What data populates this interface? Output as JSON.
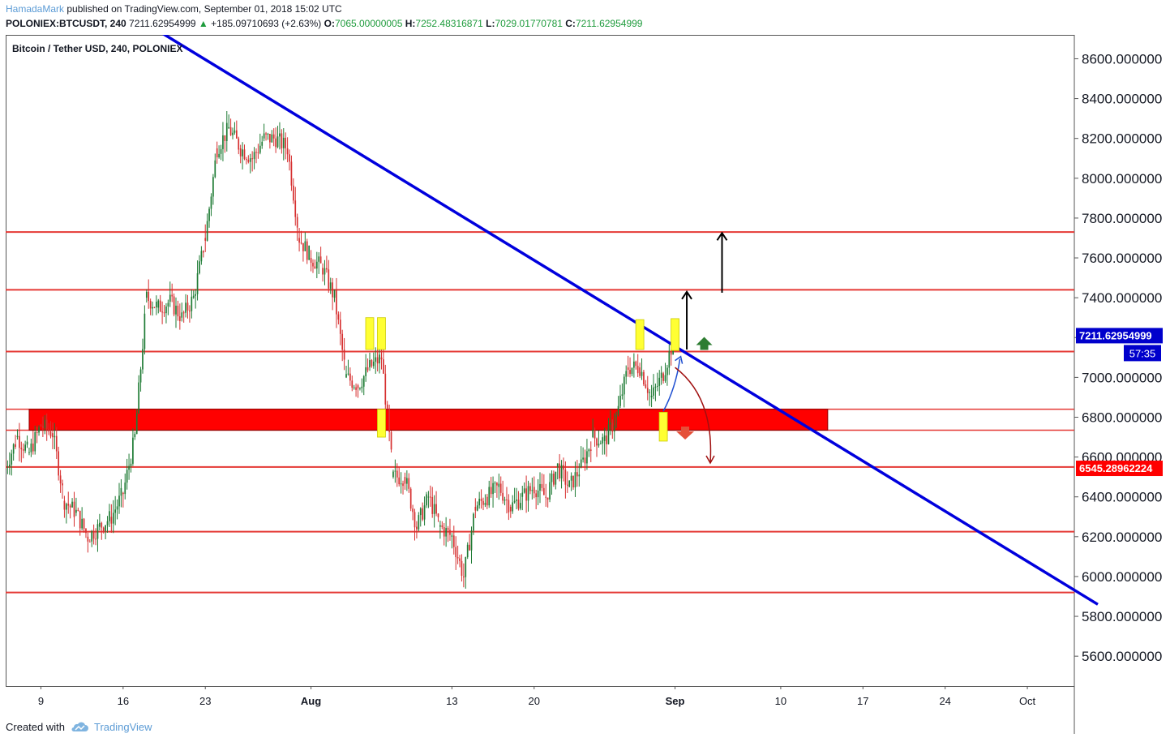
{
  "header": {
    "user": "HamadaMark",
    "published_text": " published on TradingView.com, September 01, 2018 15:02 UTC",
    "symbol": "POLONIEX:BTCUSDT, 240",
    "last": "7211.62954999",
    "arrow": "▲",
    "change": "+185.09710693 (+2.63%)",
    "o_label": "O:",
    "o_value": "7065.00000005",
    "h_label": "H:",
    "h_value": "7252.48316871",
    "l_label": "L:",
    "l_value": "7029.01770781",
    "c_label": "C:",
    "c_value": "7211.62954999"
  },
  "footer": {
    "created_with": "Created with",
    "brand": "TradingView",
    "logo_icon": "tradingview-cloud-icon"
  },
  "colors": {
    "up": "#1e7b34",
    "down": "#d62f2f",
    "trendline": "#0000dd",
    "level": "#e53935",
    "zone": "#ff0000",
    "highlight": "#ffff33",
    "price_tag": "#0000cc",
    "support_tag": "#ff0000"
  },
  "chart_data": {
    "type": "candlestick",
    "title": "Bitcoin / Tether USD, 240, POLONIEX",
    "ylim": [
      5450,
      8720
    ],
    "y_ticks": [
      5600,
      5800,
      6000,
      6200,
      6400,
      6600,
      6800,
      7000,
      7200,
      7400,
      7600,
      7800,
      8000,
      8200,
      8400,
      8600
    ],
    "y_tick_decimals": 6,
    "x_range": [
      "2018-07-06",
      "2018-10-05"
    ],
    "x_ticks": [
      {
        "date": "2018-07-09",
        "label": "9",
        "bold": false
      },
      {
        "date": "2018-07-16",
        "label": "16",
        "bold": false
      },
      {
        "date": "2018-07-23",
        "label": "23",
        "bold": false
      },
      {
        "date": "2018-08-01",
        "label": "Aug",
        "bold": true
      },
      {
        "date": "2018-08-13",
        "label": "13",
        "bold": false
      },
      {
        "date": "2018-08-20",
        "label": "20",
        "bold": false
      },
      {
        "date": "2018-09-01",
        "label": "Sep",
        "bold": true
      },
      {
        "date": "2018-09-10",
        "label": "10",
        "bold": false
      },
      {
        "date": "2018-09-17",
        "label": "17",
        "bold": false
      },
      {
        "date": "2018-09-24",
        "label": "24",
        "bold": false
      },
      {
        "date": "2018-10-01",
        "label": "Oct",
        "bold": false
      }
    ],
    "price_path": [
      [
        "2018-07-06",
        6550
      ],
      [
        "2018-07-07",
        6700
      ],
      [
        "2018-07-08",
        6620
      ],
      [
        "2018-07-09",
        6760
      ],
      [
        "2018-07-10",
        6720
      ],
      [
        "2018-07-11",
        6380
      ],
      [
        "2018-07-12",
        6320
      ],
      [
        "2018-07-13",
        6200
      ],
      [
        "2018-07-14",
        6250
      ],
      [
        "2018-07-15",
        6300
      ],
      [
        "2018-07-16",
        6420
      ],
      [
        "2018-07-17",
        6700
      ],
      [
        "2018-07-18",
        7400
      ],
      [
        "2018-07-19",
        7350
      ],
      [
        "2018-07-20",
        7380
      ],
      [
        "2018-07-21",
        7300
      ],
      [
        "2018-07-22",
        7400
      ],
      [
        "2018-07-23",
        7700
      ],
      [
        "2018-07-24",
        8150
      ],
      [
        "2018-07-25",
        8250
      ],
      [
        "2018-07-26",
        8150
      ],
      [
        "2018-07-27",
        8100
      ],
      [
        "2018-07-28",
        8200
      ],
      [
        "2018-07-29",
        8200
      ],
      [
        "2018-07-30",
        8150
      ],
      [
        "2018-07-31",
        7700
      ],
      [
        "2018-08-01",
        7600
      ],
      [
        "2018-08-02",
        7550
      ],
      [
        "2018-08-03",
        7400
      ],
      [
        "2018-08-04",
        7000
      ],
      [
        "2018-08-05",
        6960
      ],
      [
        "2018-08-06",
        7050
      ],
      [
        "2018-08-07",
        7100
      ],
      [
        "2018-08-08",
        6500
      ],
      [
        "2018-08-09",
        6500
      ],
      [
        "2018-08-10",
        6250
      ],
      [
        "2018-08-11",
        6400
      ],
      [
        "2018-08-12",
        6250
      ],
      [
        "2018-08-13",
        6200
      ],
      [
        "2018-08-14",
        6000
      ],
      [
        "2018-08-15",
        6350
      ],
      [
        "2018-08-16",
        6400
      ],
      [
        "2018-08-17",
        6450
      ],
      [
        "2018-08-18",
        6350
      ],
      [
        "2018-08-19",
        6400
      ],
      [
        "2018-08-20",
        6450
      ],
      [
        "2018-08-21",
        6400
      ],
      [
        "2018-08-22",
        6550
      ],
      [
        "2018-08-23",
        6450
      ],
      [
        "2018-08-24",
        6550
      ],
      [
        "2018-08-25",
        6700
      ],
      [
        "2018-08-26",
        6680
      ],
      [
        "2018-08-27",
        6800
      ],
      [
        "2018-08-28",
        7050
      ],
      [
        "2018-08-29",
        7050
      ],
      [
        "2018-08-30",
        6900
      ],
      [
        "2018-08-31",
        7020
      ],
      [
        "2018-09-01",
        7211
      ]
    ],
    "current_price": {
      "value": 7211.62954999,
      "label": "7211.62954999",
      "countdown": "57:35"
    },
    "support_tag": {
      "value": 6545.28962224,
      "label": "6545.28962224"
    },
    "horizontal_levels": [
      7730,
      7440,
      7130,
      6550,
      6225,
      5920
    ],
    "extra_levels": [
      6840,
      6735
    ],
    "zone": {
      "top": 6840,
      "bottom": 6735,
      "from": "2018-07-08",
      "to": "2018-09-14"
    },
    "trendline": {
      "from": [
        "2018-07-19",
        8740
      ],
      "to": [
        "2018-10-07",
        5860
      ]
    },
    "highlights": [
      {
        "date": "2018-08-06",
        "top": 7300,
        "bottom": 7140
      },
      {
        "date": "2018-08-07",
        "top": 7300,
        "bottom": 7140
      },
      {
        "date": "2018-08-07",
        "top": 6840,
        "bottom": 6700
      },
      {
        "date": "2018-08-29",
        "top": 7290,
        "bottom": 7140
      },
      {
        "date": "2018-09-01",
        "top": 7295,
        "bottom": 7135
      },
      {
        "date": "2018-08-31",
        "top": 6825,
        "bottom": 6680
      }
    ],
    "arrows": [
      {
        "kind": "black-up",
        "date": "2018-09-02",
        "from": 7140,
        "to": 7430
      },
      {
        "kind": "black-up",
        "date": "2018-09-05",
        "from": 7425,
        "to": 7725
      },
      {
        "kind": "green-up-marker",
        "date": "2018-09-03",
        "value": 7150
      },
      {
        "kind": "red-down-marker",
        "date": "2018-09-02",
        "value": 6700
      }
    ]
  }
}
